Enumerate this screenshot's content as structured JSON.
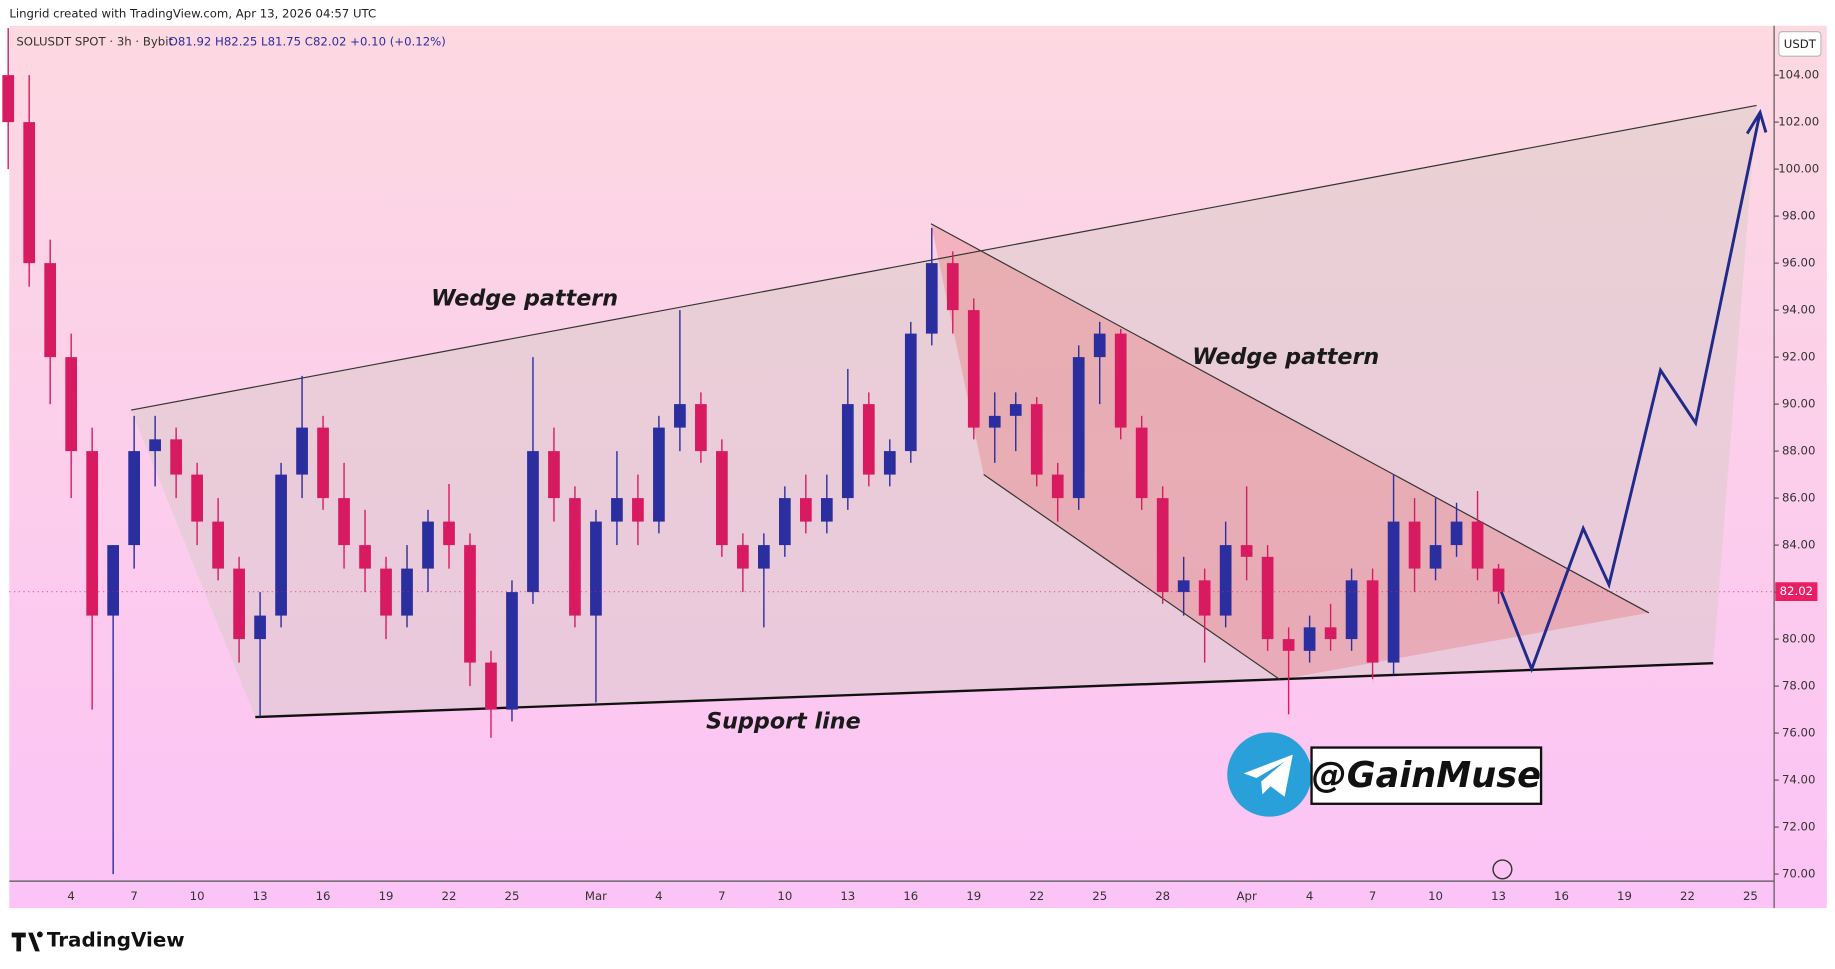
{
  "header": {
    "credit": "Lingrid created with TradingView.com, Apr 13, 2026 04:57 UTC",
    "symbol": "SOLUSDT SPOT · 3h · Bybit",
    "ohlc": "O81.92 H82.25 L81.75 C82.02 +0.10 (+0.12%)"
  },
  "chart_data": {
    "type": "candlestick",
    "currency": "USDT",
    "categories": [
      null,
      null,
      null,
      "4",
      null,
      null,
      "7",
      null,
      null,
      "10",
      null,
      null,
      "13",
      null,
      null,
      "16",
      null,
      null,
      "19",
      null,
      null,
      "22",
      null,
      null,
      "25",
      null,
      null,
      null,
      "Mar",
      null,
      null,
      "4",
      null,
      null,
      "7",
      null,
      null,
      "10",
      null,
      null,
      "13",
      null,
      null,
      "16",
      null,
      null,
      "19",
      null,
      null,
      "22",
      null,
      null,
      "25",
      null,
      null,
      "28",
      null,
      null,
      null,
      "Apr",
      null,
      null,
      "4",
      null,
      null,
      "7",
      null,
      null,
      "10",
      null,
      null,
      "13",
      null,
      null,
      "16",
      null,
      null,
      "19",
      null,
      null,
      "22",
      null,
      null,
      "25",
      null
    ],
    "open": [
      104,
      102,
      96,
      92,
      88,
      81,
      84,
      88,
      88.5,
      87,
      85,
      83,
      80,
      81,
      87,
      89,
      86,
      84,
      83,
      81,
      83,
      85,
      84,
      79,
      77,
      82,
      88,
      86,
      81,
      85,
      86,
      85,
      89,
      90,
      88,
      84,
      83,
      84,
      86,
      85,
      86,
      90,
      87,
      88,
      93,
      96,
      94,
      89,
      89.5,
      90,
      87,
      86,
      92,
      93,
      89,
      86,
      82,
      82.5,
      81,
      84,
      83.5,
      80,
      79.5,
      80.5,
      80,
      82.5,
      79,
      85,
      83,
      84,
      85,
      83,
      null,
      null,
      null,
      null,
      null,
      null,
      null,
      null,
      null,
      null,
      null,
      null,
      null
    ],
    "high": [
      106,
      104,
      97,
      93,
      89,
      84,
      89.5,
      89.5,
      89,
      87.5,
      86,
      83.5,
      82,
      87.5,
      91.2,
      89.5,
      87.5,
      85.5,
      83.5,
      84,
      85.5,
      86.6,
      84.5,
      79.5,
      82.5,
      92,
      89,
      86.5,
      85.5,
      88,
      87,
      89.5,
      94,
      90.5,
      88.5,
      84.5,
      84.5,
      86.5,
      87,
      87,
      91.5,
      90.5,
      88.5,
      93.5,
      97.5,
      96.5,
      94.5,
      90.5,
      90.5,
      90.3,
      87.5,
      92.5,
      93.5,
      93.2,
      89.5,
      86.5,
      83.5,
      83,
      85,
      86.5,
      84,
      80.5,
      81,
      81.5,
      83,
      83,
      87,
      86,
      86,
      85.8,
      86.3,
      83.2,
      null,
      null,
      null,
      null,
      null,
      null,
      null,
      null,
      null,
      null,
      null,
      null,
      null
    ],
    "low": [
      100,
      95,
      90,
      86,
      77,
      70,
      83,
      86.5,
      86,
      84,
      82.5,
      79,
      76.7,
      80.5,
      86,
      85.5,
      83,
      82,
      80,
      80.5,
      82,
      83,
      78,
      75.8,
      76.5,
      81.5,
      85,
      80.5,
      77.3,
      84,
      84,
      84.5,
      88,
      87.5,
      83.5,
      82,
      80.5,
      83.5,
      84.5,
      84.5,
      85.5,
      86.5,
      86.5,
      87.5,
      92.5,
      93,
      88.5,
      87.5,
      88,
      86.5,
      85,
      85.5,
      90,
      88.5,
      85.5,
      81.5,
      81,
      79,
      80.5,
      82.5,
      79.5,
      76.8,
      79,
      79.5,
      79.5,
      78.3,
      78.5,
      82,
      82.5,
      83.5,
      82.5,
      81.5,
      null,
      null,
      null,
      null,
      null,
      null,
      null,
      null,
      null,
      null,
      null,
      null,
      null
    ],
    "close": [
      102,
      96,
      92,
      88,
      81,
      84,
      88,
      88.5,
      87,
      85,
      83,
      80,
      81,
      87,
      89,
      86,
      84,
      83,
      81,
      83,
      85,
      84,
      79,
      77,
      82,
      88,
      86,
      81,
      85,
      86,
      85,
      89,
      90,
      88,
      84,
      83,
      84,
      86,
      85,
      86,
      90,
      87,
      88,
      93,
      96,
      94,
      89,
      89.5,
      90,
      87,
      86,
      92,
      93,
      89,
      86,
      82,
      82.5,
      81,
      84,
      83.5,
      80,
      79.5,
      80.5,
      80,
      82.5,
      79,
      85,
      83,
      84,
      85,
      83,
      82.02,
      null,
      null,
      null,
      null,
      null,
      null,
      null,
      null,
      null,
      null,
      null,
      null,
      null
    ],
    "up_color": "#2a2e9f",
    "down_color": "#d81b60",
    "last_price": 82.02,
    "last_price_color": "#e91e63",
    "ylim": [
      69.7,
      106.1
    ],
    "yticks": [
      {
        "value": 70,
        "label": "70.00"
      },
      {
        "value": 72,
        "label": "72.00"
      },
      {
        "value": 74,
        "label": "74.00"
      },
      {
        "value": 76,
        "label": "76.00"
      },
      {
        "value": 78,
        "label": "78.00"
      },
      {
        "value": 80,
        "label": "80.00"
      },
      {
        "value": 82,
        "label": "82.00"
      },
      {
        "value": 84,
        "label": "84.00"
      },
      {
        "value": 86,
        "label": "86.00"
      },
      {
        "value": 88,
        "label": "88.00"
      },
      {
        "value": 90,
        "label": "90.00"
      },
      {
        "value": 92,
        "label": "92.00"
      },
      {
        "value": 94,
        "label": "94.00"
      },
      {
        "value": 96,
        "label": "96.00"
      },
      {
        "value": 98,
        "label": "98.00"
      },
      {
        "value": 100,
        "label": "100.00"
      },
      {
        "value": 102,
        "label": "102.00"
      },
      {
        "value": 104,
        "label": "104.00"
      }
    ],
    "grid": false,
    "annotations": [
      "Wedge pattern",
      "Wedge pattern",
      "Support line"
    ]
  },
  "watermark": "@GainMuse",
  "footer": {
    "brand": "TradingView"
  }
}
